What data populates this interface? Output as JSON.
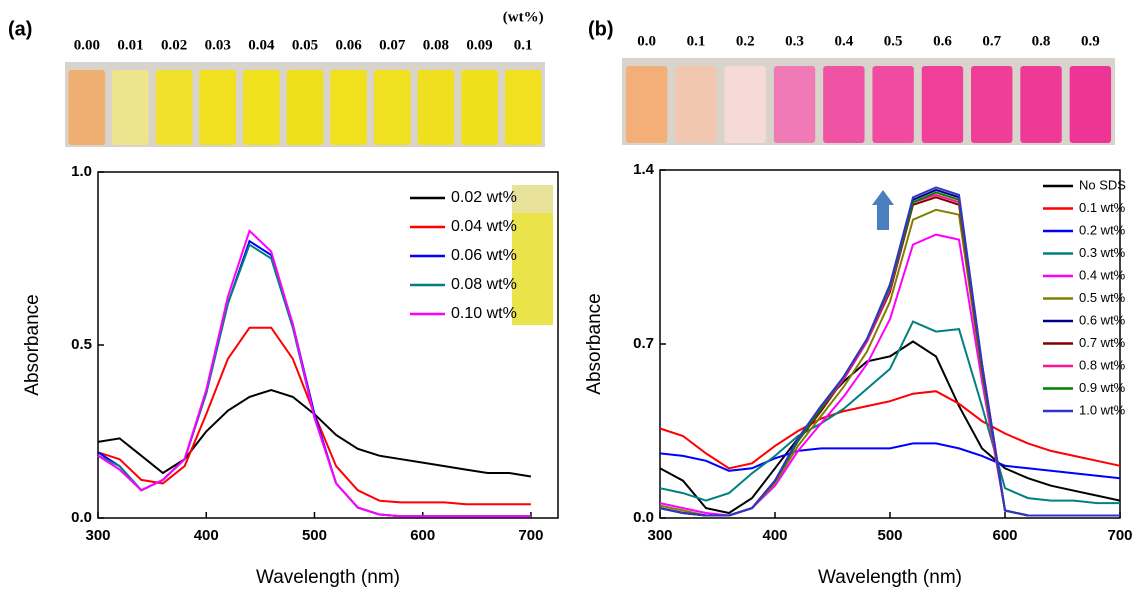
{
  "chart_data": [
    {
      "type": "line",
      "panel": "(a)",
      "xlabel": "Wavelength (nm)",
      "ylabel": "Absorbance",
      "vials": {
        "labels": [
          "0.00",
          "0.01",
          "0.02",
          "0.03",
          "0.04",
          "0.05",
          "0.06",
          "0.07",
          "0.08",
          "0.09",
          "0.1"
        ],
        "colors": [
          "#efae72",
          "#eee48e",
          "#efe12c",
          "#f0e020",
          "#f0e11e",
          "#efe01c",
          "#f0e01e",
          "#efe020",
          "#f0df1f",
          "#efe01e",
          "#f0e020"
        ],
        "unit": "(wt%)"
      },
      "x": [
        300,
        320,
        340,
        360,
        380,
        400,
        420,
        440,
        460,
        480,
        500,
        520,
        540,
        560,
        580,
        600,
        620,
        640,
        660,
        680,
        700
      ],
      "series": [
        {
          "name": "0.02 wt%",
          "color": "#000000",
          "values": [
            0.22,
            0.23,
            0.18,
            0.13,
            0.17,
            0.25,
            0.31,
            0.35,
            0.37,
            0.35,
            0.3,
            0.24,
            0.2,
            0.18,
            0.17,
            0.16,
            0.15,
            0.14,
            0.13,
            0.13,
            0.12
          ]
        },
        {
          "name": "0.04 wt%",
          "color": "#ff0000",
          "values": [
            0.19,
            0.17,
            0.11,
            0.1,
            0.15,
            0.3,
            0.46,
            0.55,
            0.55,
            0.46,
            0.3,
            0.15,
            0.08,
            0.05,
            0.045,
            0.045,
            0.045,
            0.04,
            0.04,
            0.04,
            0.04
          ]
        },
        {
          "name": "0.06 wt%",
          "color": "#0000ff",
          "values": [
            0.19,
            0.15,
            0.08,
            0.11,
            0.17,
            0.36,
            0.62,
            0.8,
            0.76,
            0.56,
            0.3,
            0.1,
            0.03,
            0.01,
            0.005,
            0.005,
            0.005,
            0.005,
            0.005,
            0.005,
            0.005
          ]
        },
        {
          "name": "0.08 wt%",
          "color": "#008080",
          "values": [
            0.18,
            0.15,
            0.08,
            0.11,
            0.17,
            0.36,
            0.62,
            0.79,
            0.75,
            0.55,
            0.29,
            0.1,
            0.03,
            0.01,
            0.005,
            0.005,
            0.005,
            0.005,
            0.005,
            0.005,
            0.005
          ]
        },
        {
          "name": "0.10 wt%",
          "color": "#ff00ff",
          "values": [
            0.18,
            0.14,
            0.08,
            0.11,
            0.17,
            0.37,
            0.64,
            0.83,
            0.77,
            0.56,
            0.29,
            0.1,
            0.03,
            0.01,
            0.005,
            0.005,
            0.005,
            0.005,
            0.005,
            0.005,
            0.005
          ]
        }
      ],
      "xlim": [
        300,
        725
      ],
      "ylim": [
        0,
        1
      ],
      "xticks": [
        300,
        400,
        500,
        600,
        700
      ],
      "yticks": [
        {
          "value": 0,
          "label": "0.0"
        },
        0.5,
        {
          "value": 1,
          "label": "1.0"
        }
      ],
      "legend": "upper right"
    },
    {
      "type": "line",
      "panel": "(b)",
      "xlabel": "Wavelength (nm)",
      "ylabel": "Absorbance",
      "vials": {
        "labels": [
          "0.0",
          "0.1",
          "0.2",
          "0.3",
          "0.4",
          "0.5",
          "0.6",
          "0.7",
          "0.8",
          "0.9"
        ],
        "colors": [
          "#f4ae78",
          "#f1c7b0",
          "#f5dad6",
          "#f07ab6",
          "#f052a4",
          "#f04ba0",
          "#ef3f99",
          "#ef3d98",
          "#ee3a96",
          "#ee3494"
        ]
      },
      "x": [
        300,
        320,
        340,
        360,
        380,
        400,
        420,
        440,
        460,
        480,
        500,
        520,
        540,
        560,
        580,
        600,
        620,
        640,
        660,
        680,
        700
      ],
      "series": [
        {
          "name": "No SDS",
          "color": "#000000",
          "values": [
            0.2,
            0.15,
            0.04,
            0.02,
            0.08,
            0.2,
            0.32,
            0.45,
            0.55,
            0.63,
            0.65,
            0.71,
            0.65,
            0.45,
            0.28,
            0.2,
            0.16,
            0.13,
            0.11,
            0.09,
            0.07
          ]
        },
        {
          "name": "0.1 wt%",
          "color": "#ff0000",
          "values": [
            0.36,
            0.33,
            0.26,
            0.2,
            0.22,
            0.29,
            0.35,
            0.4,
            0.43,
            0.45,
            0.47,
            0.5,
            0.51,
            0.46,
            0.39,
            0.34,
            0.3,
            0.27,
            0.25,
            0.23,
            0.21
          ]
        },
        {
          "name": "0.2 wt%",
          "color": "#0000ff",
          "values": [
            0.26,
            0.25,
            0.23,
            0.19,
            0.2,
            0.24,
            0.27,
            0.28,
            0.28,
            0.28,
            0.28,
            0.3,
            0.3,
            0.28,
            0.25,
            0.21,
            0.2,
            0.19,
            0.18,
            0.17,
            0.16
          ]
        },
        {
          "name": "0.3 wt%",
          "color": "#008080",
          "values": [
            0.12,
            0.1,
            0.07,
            0.1,
            0.18,
            0.25,
            0.33,
            0.38,
            0.44,
            0.52,
            0.6,
            0.79,
            0.75,
            0.76,
            0.45,
            0.12,
            0.08,
            0.07,
            0.07,
            0.06,
            0.06
          ]
        },
        {
          "name": "0.4 wt%",
          "color": "#ff00ff",
          "values": [
            0.06,
            0.04,
            0.02,
            0.01,
            0.04,
            0.13,
            0.27,
            0.38,
            0.49,
            0.62,
            0.8,
            1.1,
            1.14,
            1.12,
            0.55,
            0.03,
            0.01,
            0.01,
            0.01,
            0.01,
            0.01
          ]
        },
        {
          "name": "0.5 wt%",
          "color": "#808000",
          "values": [
            0.05,
            0.03,
            0.01,
            0.01,
            0.04,
            0.14,
            0.29,
            0.41,
            0.53,
            0.67,
            0.87,
            1.2,
            1.24,
            1.22,
            0.58,
            0.03,
            0.01,
            0.01,
            0.01,
            0.01,
            0.01
          ]
        },
        {
          "name": "0.6 wt%",
          "color": "#000080",
          "values": [
            0.04,
            0.02,
            0.01,
            0.01,
            0.04,
            0.15,
            0.31,
            0.44,
            0.57,
            0.72,
            0.93,
            1.28,
            1.32,
            1.29,
            0.62,
            0.03,
            0.01,
            0.01,
            0.01,
            0.01,
            0.01
          ]
        },
        {
          "name": "0.7 wt%",
          "color": "#800000",
          "values": [
            0.04,
            0.02,
            0.01,
            0.01,
            0.04,
            0.15,
            0.31,
            0.43,
            0.56,
            0.71,
            0.91,
            1.26,
            1.29,
            1.26,
            0.6,
            0.03,
            0.01,
            0.01,
            0.01,
            0.01,
            0.01
          ]
        },
        {
          "name": "0.8 wt%",
          "color": "#ff1493",
          "values": [
            0.04,
            0.02,
            0.01,
            0.01,
            0.04,
            0.15,
            0.31,
            0.44,
            0.56,
            0.71,
            0.92,
            1.27,
            1.3,
            1.27,
            0.61,
            0.03,
            0.01,
            0.01,
            0.01,
            0.01,
            0.01
          ]
        },
        {
          "name": "0.9 wt%",
          "color": "#008000",
          "values": [
            0.04,
            0.02,
            0.01,
            0.01,
            0.04,
            0.15,
            0.31,
            0.44,
            0.57,
            0.72,
            0.93,
            1.27,
            1.31,
            1.28,
            0.61,
            0.03,
            0.01,
            0.01,
            0.01,
            0.01,
            0.01
          ]
        },
        {
          "name": "1.0 wt%",
          "color": "#3333cc",
          "values": [
            0.04,
            0.02,
            0.01,
            0.01,
            0.04,
            0.15,
            0.32,
            0.45,
            0.57,
            0.72,
            0.94,
            1.29,
            1.33,
            1.3,
            0.62,
            0.03,
            0.01,
            0.01,
            0.01,
            0.01,
            0.01
          ]
        }
      ],
      "xlim": [
        300,
        700
      ],
      "ylim": [
        0,
        1.4
      ],
      "xticks": [
        300,
        400,
        500,
        600,
        700
      ],
      "yticks": [
        {
          "value": 0,
          "label": "0.0"
        },
        0.7,
        1.4
      ],
      "legend": "upper right"
    }
  ]
}
